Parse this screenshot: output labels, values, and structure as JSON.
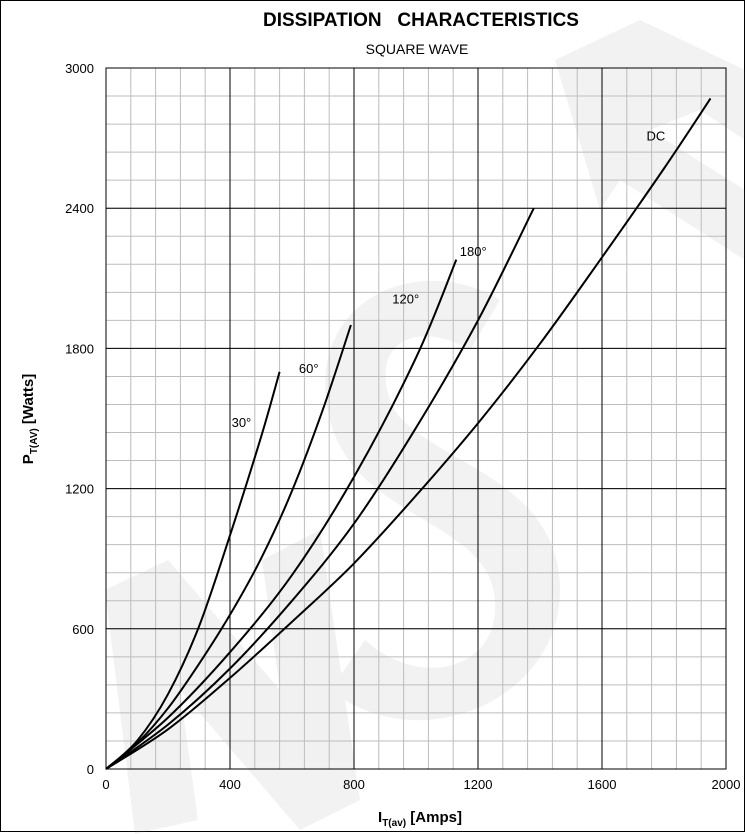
{
  "chart_data": {
    "type": "line",
    "title": "DISSIPATION   CHARACTERISTICS",
    "subtitle": "SQUARE WAVE",
    "xlabel": {
      "main": "I",
      "sub": "T(av)",
      "rest": " [Amps]"
    },
    "ylabel": {
      "main": "P",
      "sub": "T(AV)",
      "rest": " [Watts]"
    },
    "xlim": [
      0,
      2000
    ],
    "ylim": [
      0,
      3000
    ],
    "x_ticks": [
      0,
      400,
      800,
      1200,
      1600,
      2000
    ],
    "y_ticks": [
      0,
      600,
      1200,
      1800,
      2400,
      3000
    ],
    "x_tick_labels": [
      "0",
      "400",
      "800",
      "1200",
      "1600",
      "2000"
    ],
    "y_tick_labels": [
      "0",
      "600",
      "1200",
      "1800",
      "2400",
      "3000"
    ],
    "grid": {
      "major": true,
      "minor": true,
      "minor_x_step": 80,
      "minor_y_step": 120
    },
    "series": [
      {
        "name": "30°",
        "x": [
          0,
          100,
          200,
          300,
          400,
          500,
          560
        ],
        "y": [
          0,
          120,
          320,
          610,
          1000,
          1420,
          1700
        ]
      },
      {
        "name": "60°",
        "x": [
          0,
          100,
          200,
          300,
          400,
          500,
          600,
          700,
          790
        ],
        "y": [
          0,
          110,
          260,
          450,
          660,
          900,
          1190,
          1540,
          1900
        ]
      },
      {
        "name": "120°",
        "x": [
          0,
          200,
          400,
          600,
          800,
          1000,
          1130
        ],
        "y": [
          0,
          220,
          500,
          830,
          1250,
          1760,
          2180
        ]
      },
      {
        "name": "180°",
        "x": [
          0,
          200,
          400,
          600,
          800,
          1000,
          1200,
          1380
        ],
        "y": [
          0,
          190,
          430,
          720,
          1050,
          1460,
          1920,
          2400
        ]
      },
      {
        "name": "DC",
        "x": [
          0,
          200,
          400,
          600,
          800,
          1000,
          1200,
          1400,
          1600,
          1800,
          1950
        ],
        "y": [
          0,
          170,
          390,
          630,
          880,
          1170,
          1480,
          1820,
          2190,
          2570,
          2870
        ]
      }
    ]
  },
  "watermark": "NSL"
}
